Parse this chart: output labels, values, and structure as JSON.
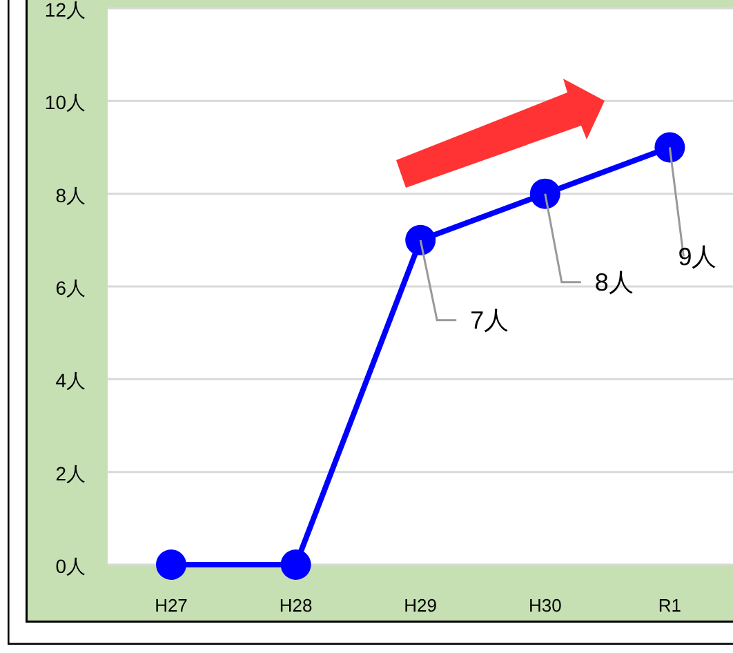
{
  "chart_data": {
    "type": "line",
    "categories": [
      "H27",
      "H28",
      "H29",
      "H30",
      "R1"
    ],
    "series": [
      {
        "color": "#0000ff",
        "values": [
          0,
          0,
          7,
          8,
          9
        ],
        "value_labels": [
          null,
          null,
          "7人",
          "8人",
          "9人"
        ]
      }
    ],
    "ylim": [
      0,
      12
    ],
    "yticks": [
      {
        "value": 0,
        "label": "0人"
      },
      {
        "value": 2,
        "label": "2人"
      },
      {
        "value": 4,
        "label": "4人"
      },
      {
        "value": 6,
        "label": "6人"
      },
      {
        "value": 8,
        "label": "8人"
      },
      {
        "value": 10,
        "label": "10人"
      },
      {
        "value": 12,
        "label": "12人"
      }
    ],
    "grid": "y",
    "marker": "circle",
    "line_style": "solid"
  }
}
